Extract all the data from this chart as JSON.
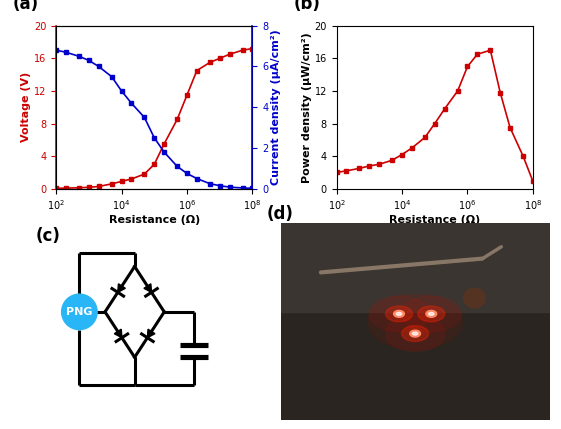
{
  "panel_a": {
    "resistance": [
      100.0,
      200.0,
      500.0,
      1000.0,
      2000.0,
      5000.0,
      10000.0,
      20000.0,
      50000.0,
      100000.0,
      200000.0,
      500000.0,
      1000000.0,
      2000000.0,
      5000000.0,
      10000000.0,
      20000000.0,
      50000000.0,
      100000000.0
    ],
    "voltage": [
      0.05,
      0.08,
      0.12,
      0.18,
      0.28,
      0.6,
      0.9,
      1.2,
      1.8,
      3.0,
      5.5,
      8.5,
      11.5,
      14.5,
      15.5,
      16.0,
      16.5,
      17.0,
      17.2
    ],
    "current": [
      6.8,
      6.7,
      6.5,
      6.3,
      6.0,
      5.5,
      4.8,
      4.2,
      3.5,
      2.5,
      1.8,
      1.1,
      0.75,
      0.5,
      0.25,
      0.15,
      0.08,
      0.04,
      0.02
    ],
    "voltage_color": "#cc0000",
    "current_color": "#0000cc",
    "ylabel_voltage": "Voltage (V)",
    "ylabel_current": "Current density (μA/cm²)",
    "xlabel": "Resistance (Ω)",
    "ylim_voltage": [
      0,
      20
    ],
    "ylim_current": [
      0,
      8
    ],
    "yticks_voltage": [
      0,
      4,
      8,
      12,
      16,
      20
    ],
    "yticks_current": [
      0,
      2,
      4,
      6,
      8
    ],
    "label": "(a)"
  },
  "panel_b": {
    "resistance": [
      100.0,
      200.0,
      500.0,
      1000.0,
      2000.0,
      5000.0,
      10000.0,
      20000.0,
      50000.0,
      100000.0,
      200000.0,
      500000.0,
      1000000.0,
      2000000.0,
      5000000.0,
      10000000.0,
      20000000.0,
      50000000.0,
      100000000.0
    ],
    "power": [
      2.0,
      2.2,
      2.5,
      2.8,
      3.0,
      3.5,
      4.2,
      5.0,
      6.3,
      8.0,
      9.8,
      12.0,
      15.0,
      16.5,
      17.0,
      11.8,
      7.5,
      4.0,
      0.9
    ],
    "color": "#cc0000",
    "ylabel": "Power density (μW/cm²)",
    "xlabel": "Resistance (Ω)",
    "ylim": [
      0,
      20
    ],
    "yticks": [
      0,
      4,
      8,
      12,
      16,
      20
    ],
    "label": "(b)"
  },
  "panel_c": {
    "label": "(c)"
  },
  "panel_d": {
    "label": "(d)"
  },
  "figure": {
    "bg_color": "#ffffff",
    "label_fontsize": 12,
    "axis_fontsize": 8,
    "tick_fontsize": 7
  }
}
